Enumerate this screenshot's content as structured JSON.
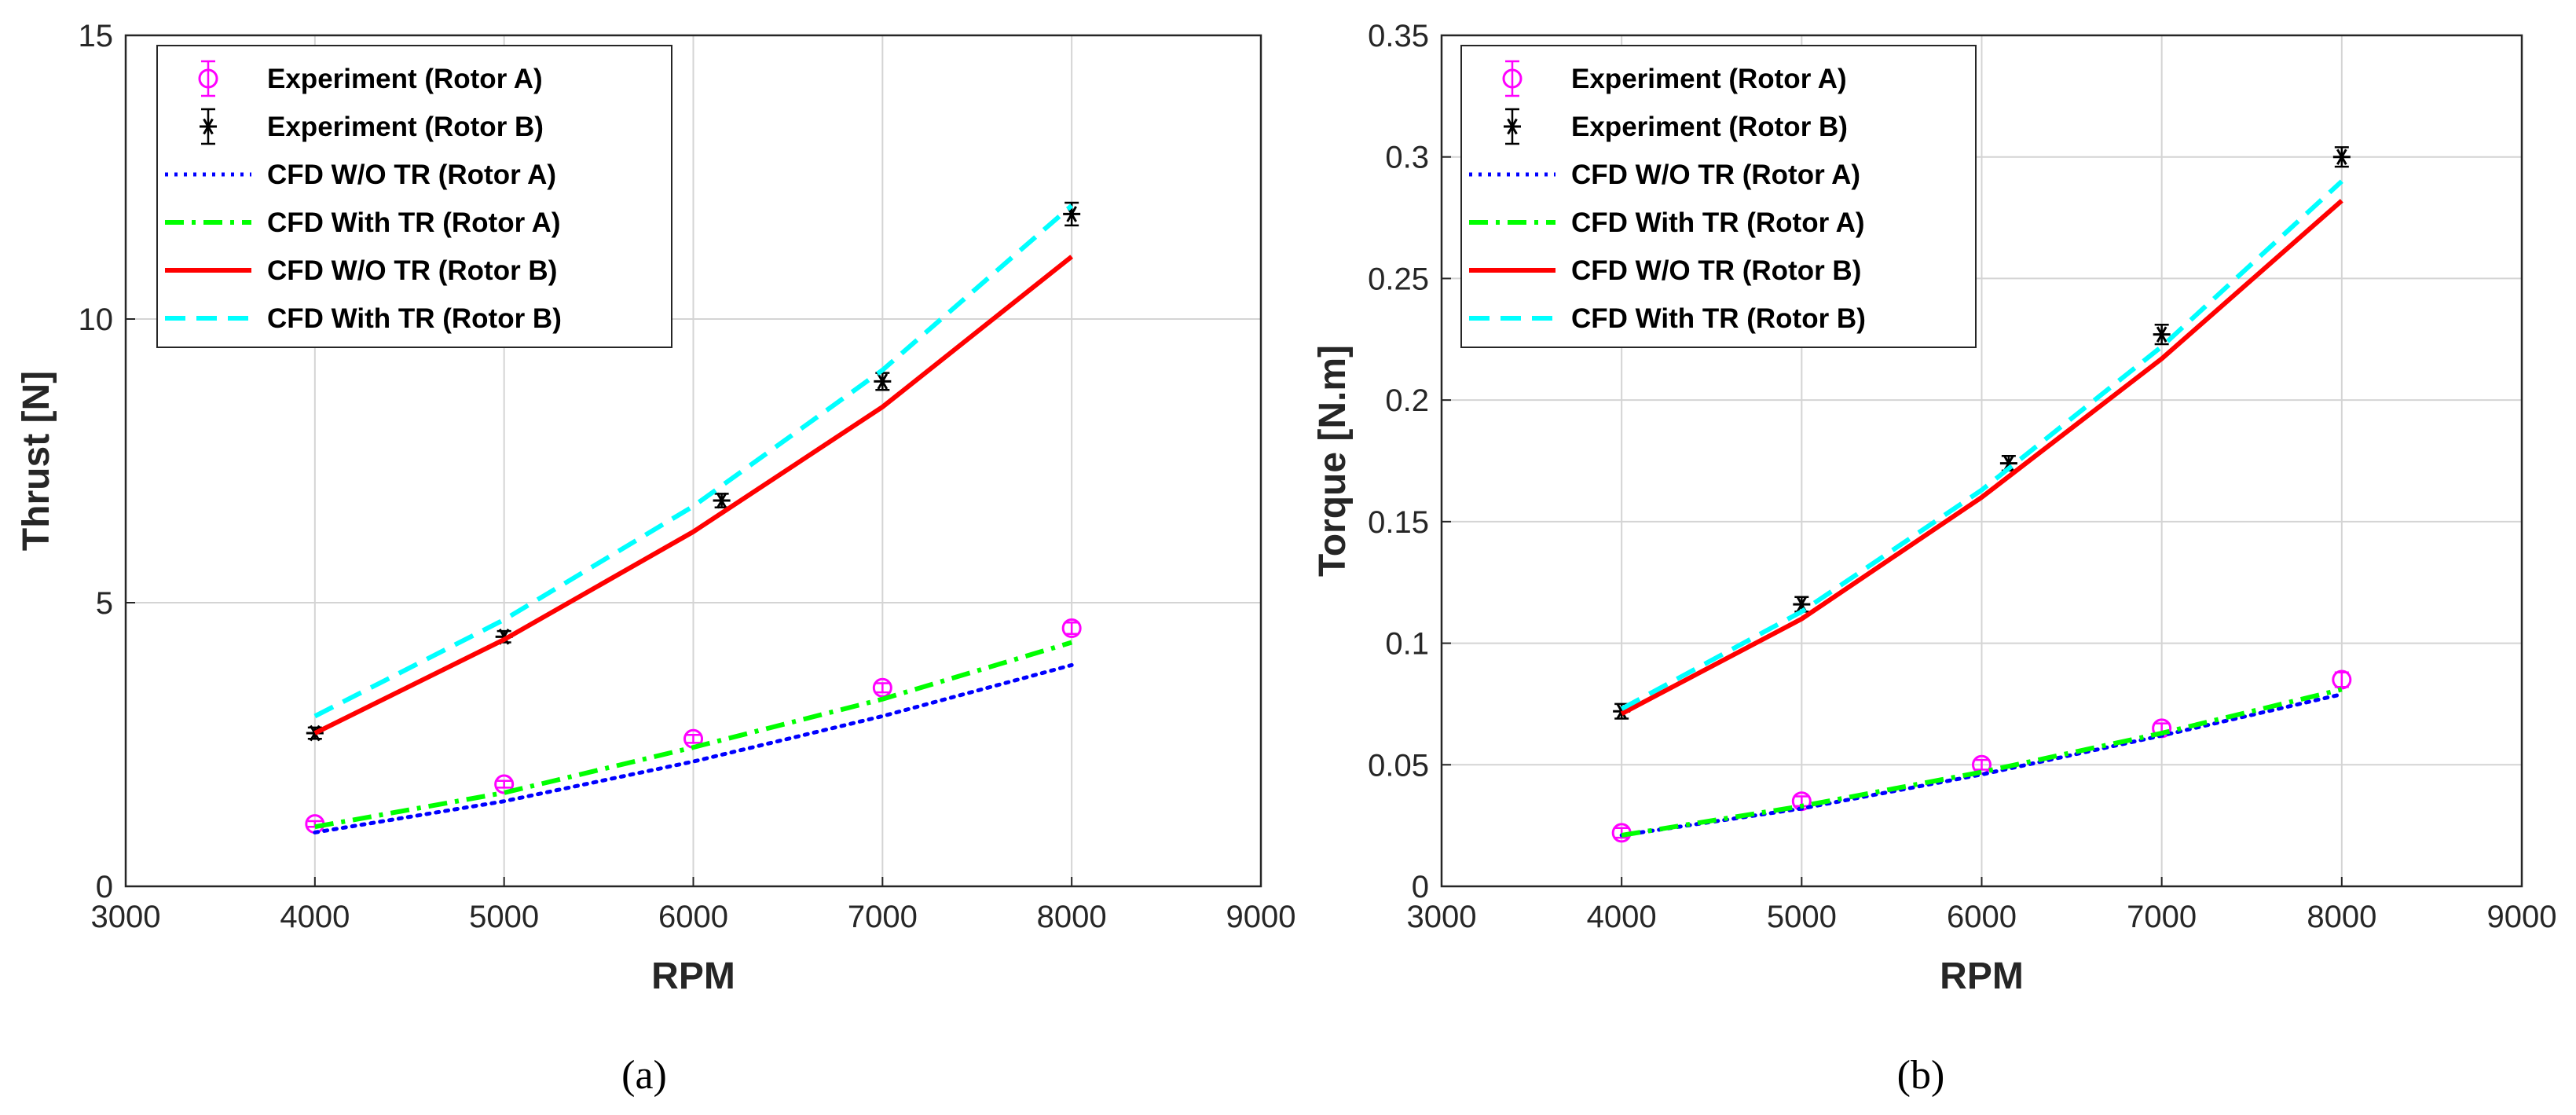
{
  "chart_data": [
    {
      "type": "line",
      "panel_label": "(a)",
      "xlabel": "RPM",
      "ylabel": "Thrust [N]",
      "xlim": [
        3000,
        9000
      ],
      "ylim": [
        0,
        15
      ],
      "xticks": [
        3000,
        4000,
        5000,
        6000,
        7000,
        8000,
        9000
      ],
      "yticks": [
        0,
        5,
        10,
        15
      ],
      "grid": true,
      "legend_position": "top-left",
      "series": [
        {
          "name": "Experiment (Rotor A)",
          "style": "marker-o",
          "color": "#ff00ff",
          "x": [
            4000,
            5000,
            6000,
            7000,
            8000
          ],
          "y": [
            1.1,
            1.8,
            2.6,
            3.5,
            4.55
          ],
          "err": [
            0.05,
            0.06,
            0.07,
            0.08,
            0.1
          ]
        },
        {
          "name": "Experiment (Rotor B)",
          "style": "marker-star",
          "color": "#000000",
          "x": [
            4000,
            5000,
            6150,
            7000,
            8000
          ],
          "y": [
            2.7,
            4.4,
            6.8,
            8.9,
            11.85
          ],
          "err": [
            0.1,
            0.1,
            0.12,
            0.15,
            0.2
          ]
        },
        {
          "name": "CFD W/O TR (Rotor A)",
          "style": "dotted",
          "color": "#0000ff",
          "x": [
            4000,
            5000,
            6000,
            7000,
            8000
          ],
          "y": [
            0.95,
            1.5,
            2.2,
            3.0,
            3.9
          ]
        },
        {
          "name": "CFD With TR (Rotor A)",
          "style": "dashdot",
          "color": "#00ff00",
          "x": [
            4000,
            5000,
            6000,
            7000,
            8000
          ],
          "y": [
            1.05,
            1.65,
            2.45,
            3.3,
            4.3
          ]
        },
        {
          "name": "CFD W/O TR (Rotor B)",
          "style": "solid",
          "color": "#ff0000",
          "x": [
            4000,
            5000,
            6000,
            7000,
            8000
          ],
          "y": [
            2.7,
            4.35,
            6.25,
            8.45,
            11.1
          ]
        },
        {
          "name": "CFD With TR (Rotor B)",
          "style": "dashed",
          "color": "#00ffff",
          "x": [
            4000,
            5000,
            6000,
            7000,
            8000
          ],
          "y": [
            3.0,
            4.7,
            6.7,
            9.1,
            12.0
          ]
        }
      ]
    },
    {
      "type": "line",
      "panel_label": "(b)",
      "xlabel": "RPM",
      "ylabel": "Torque [N.m]",
      "xlim": [
        3000,
        9000
      ],
      "ylim": [
        0,
        0.35
      ],
      "xticks": [
        3000,
        4000,
        5000,
        6000,
        7000,
        8000,
        9000
      ],
      "yticks": [
        0,
        0.05,
        0.1,
        0.15,
        0.2,
        0.25,
        0.3,
        0.35
      ],
      "grid": true,
      "legend_position": "top-left",
      "series": [
        {
          "name": "Experiment (Rotor A)",
          "style": "marker-o",
          "color": "#ff00ff",
          "x": [
            4000,
            5000,
            6000,
            7000,
            8000
          ],
          "y": [
            0.022,
            0.035,
            0.05,
            0.065,
            0.085
          ],
          "err": [
            0.002,
            0.002,
            0.002,
            0.002,
            0.003
          ]
        },
        {
          "name": "Experiment (Rotor B)",
          "style": "marker-star",
          "color": "#000000",
          "x": [
            4000,
            5000,
            6150,
            7000,
            8000
          ],
          "y": [
            0.072,
            0.116,
            0.174,
            0.227,
            0.3
          ],
          "err": [
            0.003,
            0.003,
            0.003,
            0.004,
            0.004
          ]
        },
        {
          "name": "CFD W/O TR (Rotor A)",
          "style": "dotted",
          "color": "#0000ff",
          "x": [
            4000,
            5000,
            6000,
            7000,
            8000
          ],
          "y": [
            0.021,
            0.032,
            0.046,
            0.062,
            0.079
          ]
        },
        {
          "name": "CFD With TR (Rotor A)",
          "style": "dashdot",
          "color": "#00ff00",
          "x": [
            4000,
            5000,
            6000,
            7000,
            8000
          ],
          "y": [
            0.021,
            0.033,
            0.047,
            0.063,
            0.081
          ]
        },
        {
          "name": "CFD W/O TR (Rotor B)",
          "style": "solid",
          "color": "#ff0000",
          "x": [
            4000,
            5000,
            6000,
            7000,
            8000
          ],
          "y": [
            0.071,
            0.11,
            0.16,
            0.217,
            0.282
          ]
        },
        {
          "name": "CFD With TR (Rotor B)",
          "style": "dashed",
          "color": "#00ffff",
          "x": [
            4000,
            5000,
            6000,
            7000,
            8000
          ],
          "y": [
            0.073,
            0.113,
            0.163,
            0.222,
            0.29
          ]
        }
      ]
    }
  ]
}
